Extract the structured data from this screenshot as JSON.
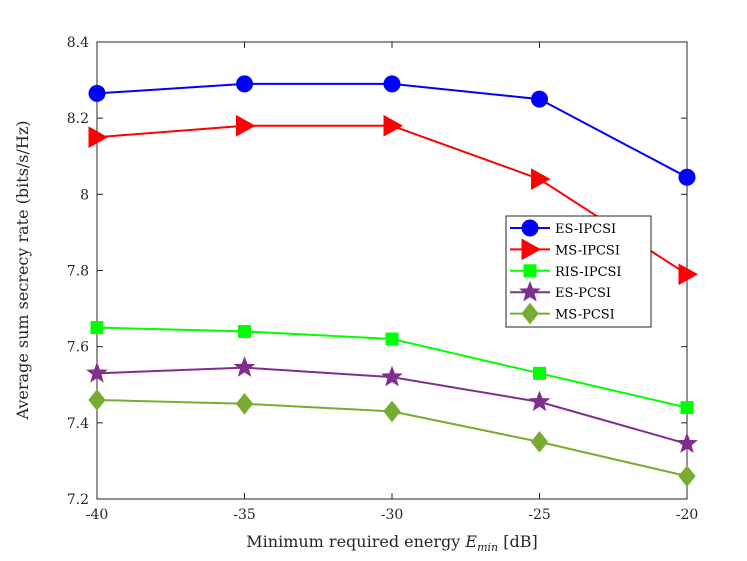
{
  "chart_data": {
    "type": "line",
    "title": "",
    "xlabel_prefix": "Minimum required energy ",
    "xlabel_symbol": "E",
    "xlabel_subscript": "min",
    "xlabel_suffix": " [dB]",
    "ylabel": "Average sum secrecy rate (bits/s/Hz)",
    "x": [
      -40,
      -35,
      -30,
      -25,
      -20
    ],
    "xlim": [
      -40,
      -20
    ],
    "ylim": [
      7.2,
      8.4
    ],
    "xticks": [
      "-40",
      "-35",
      "-30",
      "-25",
      "-20"
    ],
    "yticks": [
      "7.2",
      "7.4",
      "7.6",
      "7.8",
      "8",
      "8.2",
      "8.4"
    ],
    "grid": false,
    "legend_position": "right-middle",
    "series": [
      {
        "name": "ES-IPCSI",
        "color": "#0000ff",
        "marker": "circle",
        "values": [
          8.265,
          8.29,
          8.29,
          8.25,
          8.045
        ]
      },
      {
        "name": "MS-IPCSI",
        "color": "#ff0000",
        "marker": "triangle-right",
        "values": [
          8.15,
          8.18,
          8.18,
          8.04,
          7.79
        ]
      },
      {
        "name": "RIS-IPCSI",
        "color": "#00ff00",
        "marker": "square",
        "values": [
          7.65,
          7.64,
          7.62,
          7.53,
          7.44
        ]
      },
      {
        "name": "ES-PCSI",
        "color": "#7e2f8e",
        "marker": "star",
        "values": [
          7.53,
          7.545,
          7.52,
          7.455,
          7.345
        ]
      },
      {
        "name": "MS-PCSI",
        "color": "#77ac30",
        "marker": "diamond",
        "values": [
          7.46,
          7.45,
          7.43,
          7.35,
          7.26
        ]
      }
    ]
  }
}
